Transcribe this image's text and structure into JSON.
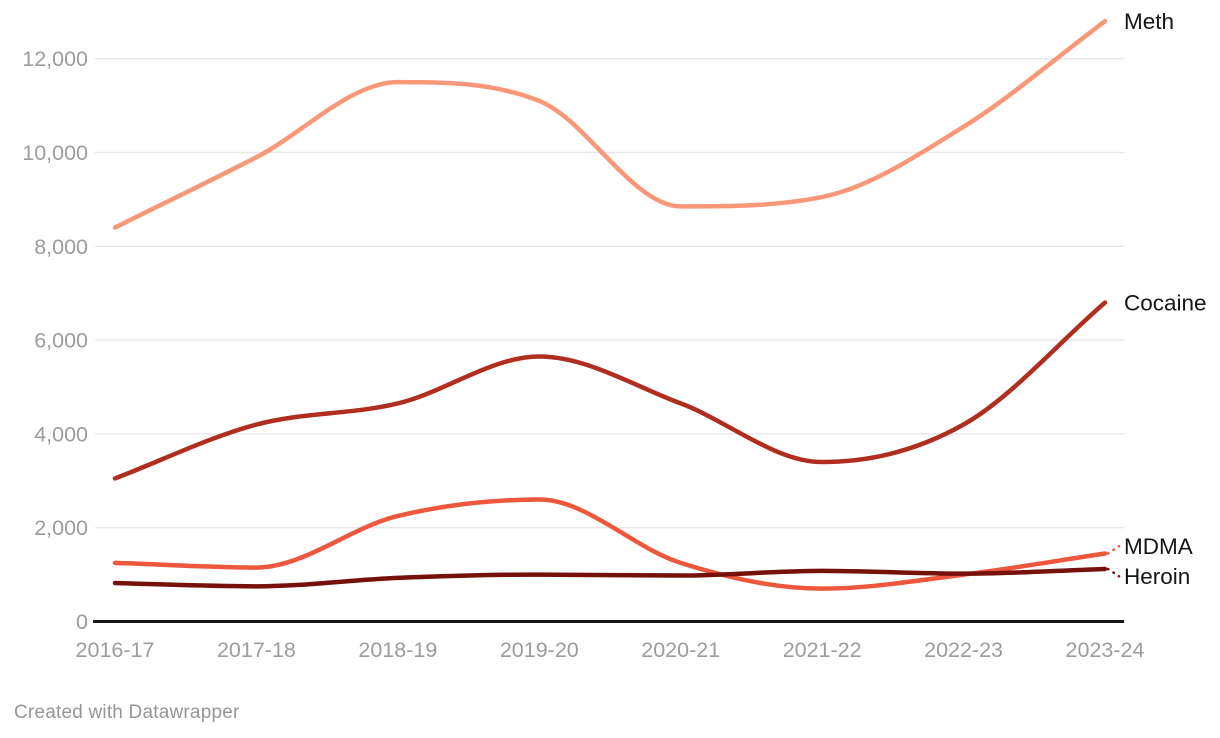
{
  "chart_data": {
    "type": "line",
    "title": "",
    "xlabel": "",
    "ylabel": "",
    "x_categories": [
      "2016-17",
      "2017-18",
      "2018-19",
      "2019-20",
      "2020-21",
      "2021-22",
      "2022-23",
      "2023-24"
    ],
    "series": [
      {
        "name": "Meth",
        "color": "#F89879",
        "values": [
          8400,
          9900,
          11500,
          11100,
          8850,
          9050,
          10550,
          12800
        ]
      },
      {
        "name": "Cocaine",
        "color": "#B02E20",
        "values": [
          3050,
          4200,
          4650,
          5650,
          4650,
          3400,
          4200,
          6800
        ]
      },
      {
        "name": "MDMA",
        "color": "#ED573B",
        "values": [
          1250,
          1150,
          2250,
          2600,
          1250,
          700,
          1000,
          1450
        ]
      },
      {
        "name": "Heroin",
        "color": "#751108",
        "values": [
          820,
          750,
          930,
          1000,
          980,
          1080,
          1020,
          1120
        ]
      }
    ],
    "y_ticks": [
      0,
      2000,
      4000,
      6000,
      8000,
      10000,
      12000
    ],
    "y_tick_labels": [
      "0",
      "2,000",
      "4,000",
      "6,000",
      "8,000",
      "10,000",
      "12,000"
    ],
    "ylim": [
      0,
      13000
    ],
    "grid": true,
    "line_style": "smooth",
    "legend_position": "direct-right-end-labels"
  },
  "colors": {
    "background": "#ffffff",
    "grid": "#e7e7e7",
    "axis": "#161616",
    "tick_label": "#9c9c9c",
    "series_label": "#161616",
    "credit": "#969696"
  },
  "footer": {
    "credit": "Created with Datawrapper"
  }
}
